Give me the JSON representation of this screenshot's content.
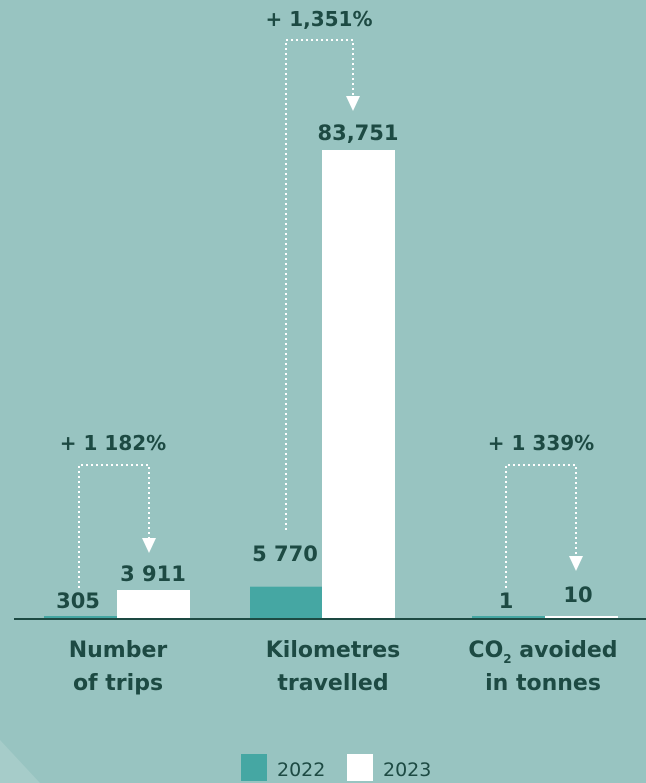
{
  "colors": {
    "background": "#98c4c1",
    "series_2022": "#45a7a3",
    "series_2023": "#ffffff",
    "text": "#1d4a43",
    "baseline": "#1d4a43"
  },
  "chart_data": {
    "type": "bar",
    "scale_note": "each category group uses an independent vertical scale",
    "categories": [
      {
        "line1": "Number",
        "line2": "of trips"
      },
      {
        "line1": "Kilometres",
        "line2": "travelled"
      },
      {
        "line1_main": "CO",
        "line1_sub": "2",
        "line1_rest": " avoided",
        "line2": "in tonnes"
      }
    ],
    "series": [
      {
        "name": "2022",
        "values": [
          305,
          5770,
          1
        ],
        "labels": [
          "305",
          "5 770",
          "1"
        ]
      },
      {
        "name": "2023",
        "values": [
          3911,
          83751,
          10
        ],
        "labels": [
          "3 911",
          "83,751",
          "10"
        ]
      }
    ],
    "changes": [
      "+ 1 182%",
      "+ 1,351%",
      "+ 1 339%"
    ],
    "legend": [
      "2022",
      "2023"
    ],
    "legend_position": "bottom"
  }
}
